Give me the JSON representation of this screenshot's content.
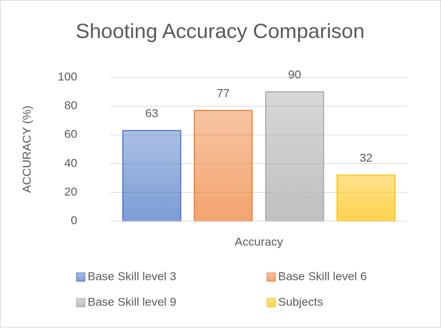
{
  "chart_data": {
    "type": "bar",
    "title": "Shooting Accuracy Comparison",
    "ylabel": "ACCURACY (%)",
    "categories": [
      "Accuracy"
    ],
    "series": [
      {
        "name": "Base Skill level 3",
        "color": "#4472c4",
        "values": [
          63
        ]
      },
      {
        "name": "Base Skill level 6",
        "color": "#ed7d31",
        "values": [
          77
        ]
      },
      {
        "name": "Base Skill level 9",
        "color": "#a5a5a5",
        "values": [
          90
        ]
      },
      {
        "name": "Subjects",
        "color": "#ffc000",
        "values": [
          32
        ]
      }
    ],
    "ylim": [
      0,
      100
    ],
    "yticks": [
      0,
      20,
      40,
      60,
      80,
      100
    ],
    "grid": true,
    "legend": "bottom"
  }
}
